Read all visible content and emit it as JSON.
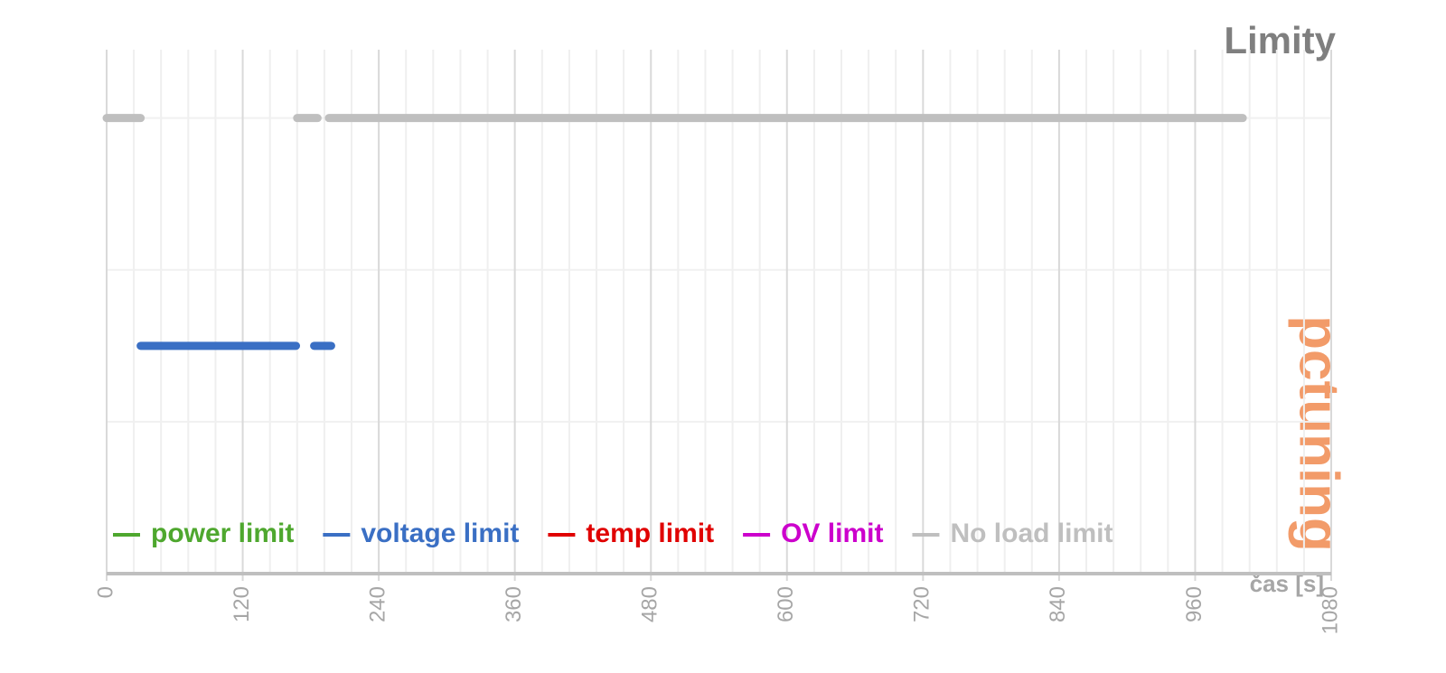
{
  "chart_data": {
    "type": "line",
    "title": "Limity",
    "x_label": "čas [s]",
    "watermark": "pctuning",
    "xlim": [
      0,
      1080
    ],
    "xticks": [
      0,
      120,
      240,
      360,
      480,
      600,
      720,
      840,
      960,
      1080
    ],
    "ylim": [
      0,
      3.45
    ],
    "yticks": [
      0,
      1,
      2,
      3
    ],
    "grid": true,
    "series": [
      {
        "name": "power limit",
        "color": "#4ea72e",
        "x": [],
        "values": []
      },
      {
        "name": "voltage limit",
        "color": "#3a6fc4",
        "x": [
          30,
          167,
          175,
          183,
          198
        ],
        "values": [
          1.5,
          1.5,
          null,
          1.5,
          1.5
        ]
      },
      {
        "name": "temp limit",
        "color": "#e00000",
        "x": [],
        "values": []
      },
      {
        "name": "OV limit",
        "color": "#cc00cc",
        "x": [],
        "values": []
      },
      {
        "name": "No load limit",
        "color": "#bfbfbf",
        "x": [
          0,
          30,
          99,
          168,
          186,
          191,
          196,
          1002
        ],
        "values": [
          3,
          3,
          null,
          3,
          3,
          null,
          3,
          3
        ]
      }
    ]
  }
}
